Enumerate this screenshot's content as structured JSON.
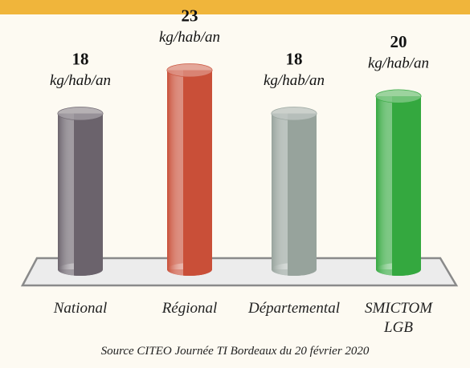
{
  "chart_data": {
    "type": "bar",
    "categories": [
      "National",
      "Régional",
      "Départemental",
      "SMICTOM LGB"
    ],
    "values": [
      18,
      23,
      18,
      20
    ],
    "unit": "kg/hab/an",
    "colors": [
      "#6b636c",
      "#c94f38",
      "#97a39c",
      "#34a83f"
    ],
    "source": "Source CITEO Journée TI Bordeaux du 20 février 2020"
  }
}
